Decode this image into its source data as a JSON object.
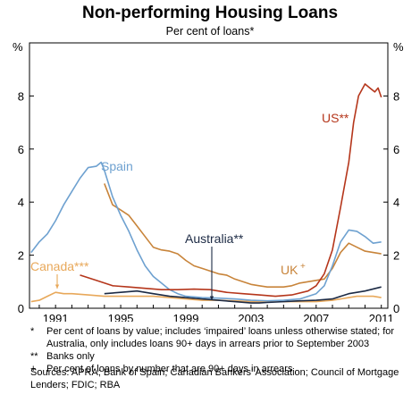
{
  "header": {
    "title": "Non-performing Housing Loans",
    "subtitle": "Per cent of loans*"
  },
  "chart_data": {
    "type": "line",
    "title": "Non-performing Housing Loans",
    "subtitle": "Per cent of loans*",
    "y_unit_left": "%",
    "y_unit_right": "%",
    "xlim": [
      1989.4,
      2011.4
    ],
    "ylim": [
      0,
      10
    ],
    "x_ticks": [
      "1991",
      "1995",
      "1999",
      "2003",
      "2007",
      "2011"
    ],
    "y_ticks": [
      "0",
      "2",
      "4",
      "6",
      "8"
    ],
    "grid": false,
    "series": [
      {
        "name": "US**",
        "color": "#b5361b",
        "points": [
          [
            1992.5,
            1.25
          ],
          [
            1993.5,
            1.05
          ],
          [
            1994.5,
            0.85
          ],
          [
            1995.5,
            0.8
          ],
          [
            1996.5,
            0.75
          ],
          [
            1997.5,
            0.7
          ],
          [
            1998.5,
            0.7
          ],
          [
            1999.5,
            0.72
          ],
          [
            2000.5,
            0.7
          ],
          [
            2001.5,
            0.6
          ],
          [
            2002.5,
            0.55
          ],
          [
            2003.5,
            0.5
          ],
          [
            2004.5,
            0.45
          ],
          [
            2005.5,
            0.5
          ],
          [
            2006.5,
            0.65
          ],
          [
            2007.0,
            0.85
          ],
          [
            2007.5,
            1.3
          ],
          [
            2008.0,
            2.2
          ],
          [
            2008.5,
            3.8
          ],
          [
            2009.0,
            5.5
          ],
          [
            2009.3,
            7.0
          ],
          [
            2009.6,
            8.0
          ],
          [
            2010.0,
            8.45
          ],
          [
            2010.3,
            8.3
          ],
          [
            2010.6,
            8.15
          ],
          [
            2010.8,
            8.3
          ],
          [
            2011.0,
            7.95
          ]
        ]
      },
      {
        "name": "Spain",
        "color": "#6ea1d0",
        "points": [
          [
            1989.5,
            2.1
          ],
          [
            1990.0,
            2.5
          ],
          [
            1990.5,
            2.8
          ],
          [
            1991.0,
            3.3
          ],
          [
            1991.5,
            3.9
          ],
          [
            1992.0,
            4.4
          ],
          [
            1992.5,
            4.9
          ],
          [
            1993.0,
            5.3
          ],
          [
            1993.5,
            5.35
          ],
          [
            1993.8,
            5.5
          ],
          [
            1994.0,
            5.2
          ],
          [
            1994.5,
            4.2
          ],
          [
            1995.0,
            3.5
          ],
          [
            1995.5,
            2.9
          ],
          [
            1996.0,
            2.2
          ],
          [
            1996.5,
            1.6
          ],
          [
            1997.0,
            1.2
          ],
          [
            1997.5,
            0.95
          ],
          [
            1998.0,
            0.7
          ],
          [
            1998.5,
            0.55
          ],
          [
            1999.0,
            0.45
          ],
          [
            2000.0,
            0.4
          ],
          [
            2001.0,
            0.38
          ],
          [
            2002.0,
            0.35
          ],
          [
            2003.0,
            0.3
          ],
          [
            2004.0,
            0.28
          ],
          [
            2005.0,
            0.3
          ],
          [
            2006.0,
            0.35
          ],
          [
            2007.0,
            0.55
          ],
          [
            2007.5,
            0.85
          ],
          [
            2008.0,
            1.6
          ],
          [
            2008.5,
            2.5
          ],
          [
            2009.0,
            2.95
          ],
          [
            2009.5,
            2.9
          ],
          [
            2010.0,
            2.7
          ],
          [
            2010.5,
            2.45
          ],
          [
            2011.0,
            2.5
          ]
        ]
      },
      {
        "name": "UK",
        "name_suffix": "+",
        "color": "#c8843a",
        "points": [
          [
            1994.0,
            4.7
          ],
          [
            1994.5,
            3.9
          ],
          [
            1995.0,
            3.7
          ],
          [
            1995.5,
            3.5
          ],
          [
            1996.0,
            3.1
          ],
          [
            1996.5,
            2.7
          ],
          [
            1997.0,
            2.3
          ],
          [
            1997.5,
            2.2
          ],
          [
            1998.0,
            2.15
          ],
          [
            1998.5,
            2.05
          ],
          [
            1999.0,
            1.8
          ],
          [
            1999.5,
            1.6
          ],
          [
            2000.0,
            1.5
          ],
          [
            2000.5,
            1.4
          ],
          [
            2001.0,
            1.3
          ],
          [
            2001.5,
            1.25
          ],
          [
            2002.0,
            1.1
          ],
          [
            2002.5,
            1.0
          ],
          [
            2003.0,
            0.9
          ],
          [
            2003.5,
            0.85
          ],
          [
            2004.0,
            0.8
          ],
          [
            2004.5,
            0.8
          ],
          [
            2005.0,
            0.8
          ],
          [
            2005.5,
            0.85
          ],
          [
            2006.0,
            0.95
          ],
          [
            2006.5,
            1.0
          ],
          [
            2007.0,
            1.05
          ],
          [
            2007.5,
            1.1
          ],
          [
            2008.0,
            1.5
          ],
          [
            2008.5,
            2.1
          ],
          [
            2009.0,
            2.45
          ],
          [
            2009.5,
            2.3
          ],
          [
            2010.0,
            2.15
          ],
          [
            2010.5,
            2.1
          ],
          [
            2011.0,
            2.05
          ]
        ]
      },
      {
        "name": "Canada***",
        "color": "#e8a85a",
        "points": [
          [
            1989.5,
            0.25
          ],
          [
            1990.0,
            0.3
          ],
          [
            1990.5,
            0.45
          ],
          [
            1991.0,
            0.6
          ],
          [
            1991.5,
            0.55
          ],
          [
            1992.0,
            0.55
          ],
          [
            1993.0,
            0.5
          ],
          [
            1994.0,
            0.45
          ],
          [
            1995.0,
            0.45
          ],
          [
            1996.0,
            0.45
          ],
          [
            1997.0,
            0.45
          ],
          [
            1998.0,
            0.4
          ],
          [
            1999.0,
            0.35
          ],
          [
            2000.0,
            0.3
          ],
          [
            2001.0,
            0.3
          ],
          [
            2002.0,
            0.28
          ],
          [
            2003.0,
            0.25
          ],
          [
            2004.0,
            0.25
          ],
          [
            2005.0,
            0.25
          ],
          [
            2006.0,
            0.25
          ],
          [
            2007.0,
            0.25
          ],
          [
            2008.0,
            0.3
          ],
          [
            2009.0,
            0.4
          ],
          [
            2009.5,
            0.45
          ],
          [
            2010.0,
            0.45
          ],
          [
            2010.5,
            0.45
          ],
          [
            2011.0,
            0.4
          ]
        ]
      },
      {
        "name": "Australia**",
        "color": "#1c2a44",
        "points": [
          [
            1994.0,
            0.55
          ],
          [
            1995.0,
            0.6
          ],
          [
            1996.0,
            0.65
          ],
          [
            1997.0,
            0.55
          ],
          [
            1998.0,
            0.45
          ],
          [
            1999.0,
            0.4
          ],
          [
            2000.0,
            0.35
          ],
          [
            2001.0,
            0.3
          ],
          [
            2002.0,
            0.25
          ],
          [
            2003.0,
            0.2
          ],
          [
            2003.5,
            0.2
          ],
          [
            2004.0,
            0.22
          ],
          [
            2005.0,
            0.25
          ],
          [
            2006.0,
            0.28
          ],
          [
            2007.0,
            0.3
          ],
          [
            2008.0,
            0.35
          ],
          [
            2009.0,
            0.55
          ],
          [
            2010.0,
            0.65
          ],
          [
            2011.0,
            0.8
          ]
        ]
      }
    ],
    "labels": [
      {
        "text": "US**",
        "series": "US**"
      },
      {
        "text": "Spain",
        "series": "Spain"
      },
      {
        "text": "Australia**",
        "series": "Australia**"
      },
      {
        "text": "UK",
        "series": "UK"
      },
      {
        "text": "Canada***",
        "series": "Canada***"
      }
    ]
  },
  "notes": [
    {
      "mark": "*",
      "text": "Per cent of loans by value; includes ‘impaired’ loans unless otherwise stated; for Australia, only includes loans 90+ days in arrears prior to September 2003"
    },
    {
      "mark": "**",
      "text": "Banks only"
    },
    {
      "mark": "+",
      "text": "Per cent of loans by number that are 90+ days in arrears"
    }
  ],
  "sources": "Sources: APRA; Bank of Spain; Canadian Bankers’ Association; Council of Mortgage Lenders; FDIC; RBA"
}
